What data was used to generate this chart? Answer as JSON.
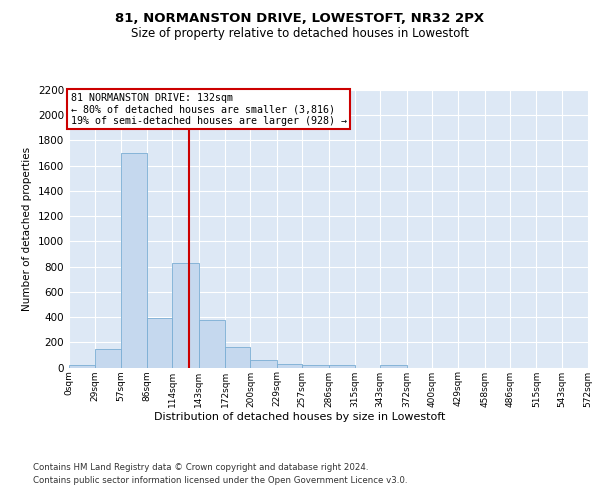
{
  "title": "81, NORMANSTON DRIVE, LOWESTOFT, NR32 2PX",
  "subtitle": "Size of property relative to detached houses in Lowestoft",
  "xlabel": "Distribution of detached houses by size in Lowestoft",
  "ylabel": "Number of detached properties",
  "bar_color": "#c5d8ee",
  "bar_edge_color": "#7aadd4",
  "background_color": "#dde8f5",
  "grid_color": "#ffffff",
  "bin_edges": [
    0,
    29,
    57,
    86,
    114,
    143,
    172,
    200,
    229,
    257,
    286,
    315,
    343,
    372,
    400,
    429,
    458,
    486,
    515,
    543,
    572
  ],
  "bin_labels": [
    "0sqm",
    "29sqm",
    "57sqm",
    "86sqm",
    "114sqm",
    "143sqm",
    "172sqm",
    "200sqm",
    "229sqm",
    "257sqm",
    "286sqm",
    "315sqm",
    "343sqm",
    "372sqm",
    "400sqm",
    "429sqm",
    "458sqm",
    "486sqm",
    "515sqm",
    "543sqm",
    "572sqm"
  ],
  "bar_heights": [
    20,
    150,
    1700,
    390,
    830,
    380,
    160,
    60,
    25,
    20,
    20,
    0,
    20,
    0,
    0,
    0,
    0,
    0,
    0,
    0
  ],
  "property_line_x": 132,
  "annotation_text": "81 NORMANSTON DRIVE: 132sqm\n← 80% of detached houses are smaller (3,816)\n19% of semi-detached houses are larger (928) →",
  "annotation_box_color": "#ffffff",
  "annotation_border_color": "#cc0000",
  "vline_color": "#cc0000",
  "ylim": [
    0,
    2200
  ],
  "yticks": [
    0,
    200,
    400,
    600,
    800,
    1000,
    1200,
    1400,
    1600,
    1800,
    2000,
    2200
  ],
  "footer_line1": "Contains HM Land Registry data © Crown copyright and database right 2024.",
  "footer_line2": "Contains public sector information licensed under the Open Government Licence v3.0."
}
